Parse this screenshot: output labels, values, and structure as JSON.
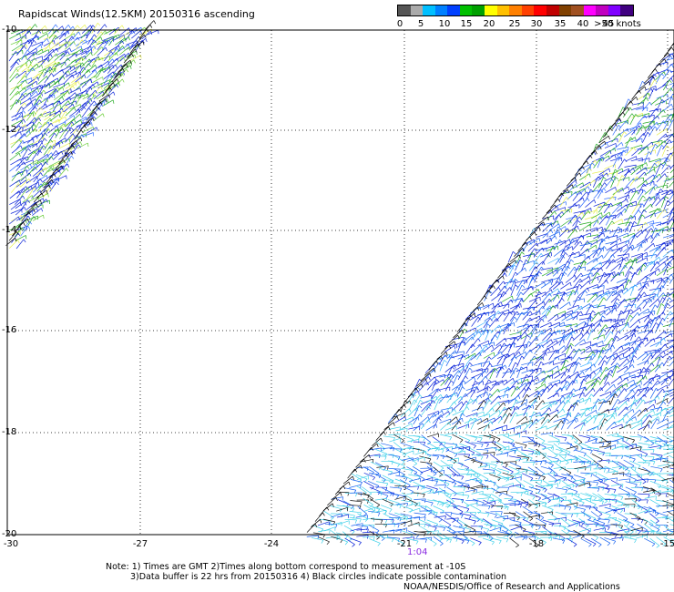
{
  "title": "Rapidscat Winds(12.5KM) 20150316 ascending",
  "legend": {
    "colors": [
      "#555555",
      "#aaaaaa",
      "#00bfff",
      "#0080ff",
      "#0040ff",
      "#00c000",
      "#00a000",
      "#ffff00",
      "#ffc000",
      "#ff8000",
      "#ff4000",
      "#ff0000",
      "#c00000",
      "#804000",
      "#a05020",
      "#ff00ff",
      "#c000c0",
      "#8000ff",
      "#400080"
    ],
    "labels": [
      "0",
      "5",
      "10",
      "15",
      "20",
      "25",
      "30",
      "35",
      "40",
      "45",
      ">50 knots"
    ]
  },
  "map": {
    "lat_labels": [
      "-10",
      "-12",
      "-14",
      "-16",
      "-18",
      "-20"
    ],
    "lon_labels": [
      "-30",
      "-27",
      "-24",
      "-21",
      "-18",
      "-15"
    ],
    "pass_time": "1:04"
  },
  "notes": {
    "line1": "Note: 1) Times are GMT 2)Times along bottom correspond to measurement at -10S",
    "line2": "3)Data buffer is 22 hrs from 20150316 4) Black circles indicate possible contamination",
    "line3": "NOAA/NESDIS/Office of Research and Applications"
  }
}
